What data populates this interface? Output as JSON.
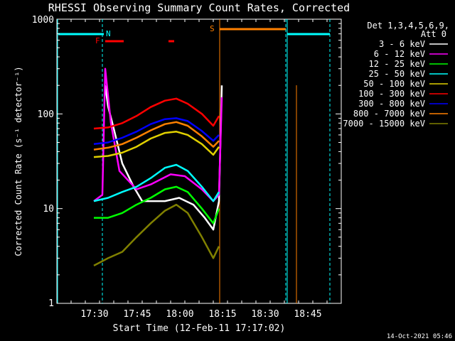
{
  "chart_data": {
    "type": "line",
    "title": "RHESSI Observing Summary Count Rates, Corrected",
    "xlabel": "Start Time (12-Feb-11 17:17:02)",
    "ylabel": "Corrected Count Rate (s⁻¹ detector⁻¹)",
    "yscale": "log",
    "ylim": [
      1,
      1000
    ],
    "y_tick_labels": [
      "1",
      "10",
      "100",
      "1000"
    ],
    "xlim": [
      "17:17",
      "18:57"
    ],
    "x_tick_labels": [
      "17:30",
      "17:45",
      "18:00",
      "18:15",
      "18:30",
      "18:45"
    ],
    "legend_header": [
      "Det 1,3,4,5,6,9,",
      "Att 0"
    ],
    "legend_position": "right",
    "footer_date": "14-Oct-2021 05:46",
    "flag_labels": [
      "F",
      "N",
      "S",
      "N"
    ],
    "series": [
      {
        "name": "3 - 6 keV",
        "color": "#ffffff",
        "x": [
          "17:34",
          "17:35",
          "17:37",
          "17:40",
          "17:44",
          "17:47",
          "17:50",
          "17:55",
          "18:00",
          "18:05",
          "18:09",
          "18:12",
          "18:14",
          "18:15"
        ],
        "y": [
          200,
          120,
          70,
          30,
          17,
          12,
          12,
          12,
          13,
          11,
          8,
          6,
          12,
          200
        ]
      },
      {
        "name": "6 - 12 keV",
        "color": "#ff00ff",
        "x": [
          "17:30",
          "17:33",
          "17:34",
          "17:36",
          "17:39",
          "17:45",
          "17:50",
          "17:57",
          "18:02",
          "18:08",
          "18:12",
          "18:14",
          "18:15"
        ],
        "y": [
          12,
          14,
          300,
          80,
          25,
          16,
          18,
          23,
          22,
          16,
          12,
          14,
          150
        ]
      },
      {
        "name": "12 - 25 keV",
        "color": "#00ff00",
        "x": [
          "17:30",
          "17:35",
          "17:40",
          "17:45",
          "17:50",
          "17:55",
          "17:59",
          "18:03",
          "18:08",
          "18:12",
          "18:14"
        ],
        "y": [
          8,
          8,
          9,
          11,
          13,
          16,
          17,
          15,
          10,
          7,
          10
        ]
      },
      {
        "name": "25 - 50 keV",
        "color": "#00ffff",
        "x": [
          "17:30",
          "17:35",
          "17:40",
          "17:45",
          "17:50",
          "17:55",
          "17:59",
          "18:03",
          "18:08",
          "18:12",
          "18:14"
        ],
        "y": [
          12,
          13,
          15,
          17,
          21,
          27,
          29,
          25,
          17,
          12,
          15
        ]
      },
      {
        "name": "50 - 100 keV",
        "color": "#e0d000",
        "x": [
          "17:30",
          "17:35",
          "17:40",
          "17:45",
          "17:50",
          "17:55",
          "17:59",
          "18:03",
          "18:08",
          "18:12",
          "18:14"
        ],
        "y": [
          35,
          36,
          39,
          45,
          55,
          63,
          65,
          60,
          48,
          37,
          45
        ]
      },
      {
        "name": "100 - 300 keV",
        "color": "#ff0000",
        "x": [
          "17:30",
          "17:35",
          "17:40",
          "17:45",
          "17:50",
          "17:55",
          "17:59",
          "18:03",
          "18:08",
          "18:12",
          "18:14"
        ],
        "y": [
          70,
          72,
          80,
          95,
          118,
          138,
          145,
          128,
          100,
          75,
          95
        ]
      },
      {
        "name": "300 - 800 keV",
        "color": "#0000ff",
        "x": [
          "17:30",
          "17:35",
          "17:40",
          "17:45",
          "17:50",
          "17:55",
          "17:59",
          "18:03",
          "18:08",
          "18:12",
          "18:14"
        ],
        "y": [
          48,
          50,
          56,
          65,
          78,
          88,
          90,
          84,
          66,
          52,
          60
        ]
      },
      {
        "name": "800 - 7000 keV",
        "color": "#ff8000",
        "x": [
          "17:30",
          "17:35",
          "17:40",
          "17:45",
          "17:50",
          "17:55",
          "17:59",
          "18:03",
          "18:08",
          "18:12",
          "18:14"
        ],
        "y": [
          42,
          44,
          48,
          56,
          67,
          78,
          82,
          75,
          58,
          45,
          52
        ]
      },
      {
        "name": "7000 - 15000 keV",
        "color": "#808000",
        "x": [
          "17:30",
          "17:35",
          "17:40",
          "17:45",
          "17:50",
          "17:55",
          "17:59",
          "18:03",
          "18:08",
          "18:12",
          "18:14"
        ],
        "y": [
          2.5,
          3,
          3.5,
          5,
          7,
          9.5,
          11,
          9,
          5,
          3,
          4
        ]
      }
    ]
  }
}
